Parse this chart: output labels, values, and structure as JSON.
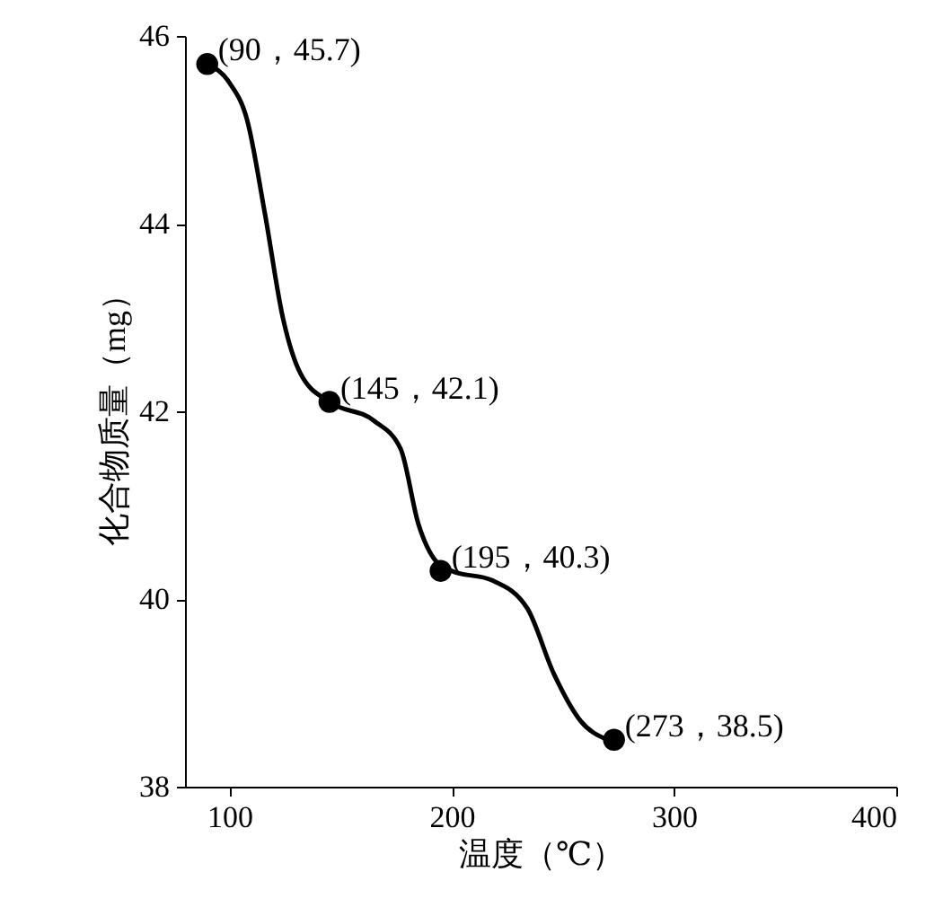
{
  "chart_data": {
    "type": "line",
    "xlabel": "温度（℃）",
    "ylabel": "化合物质量（mg）",
    "xlim": [
      80,
      400
    ],
    "ylim": [
      38,
      46
    ],
    "xticks": [
      100,
      200,
      300,
      400
    ],
    "yticks": [
      38,
      40,
      42,
      44,
      46
    ],
    "series": [
      {
        "type": "line",
        "marker": "none",
        "color": "#000000",
        "x": [
          90,
          100,
          108,
          116,
          124,
          132,
          145,
          165,
          177,
          185,
          193,
          200,
          218,
          234,
          246,
          258,
          270
        ],
        "values": [
          45.7,
          45.5,
          45.1,
          44.1,
          43.0,
          42.4,
          42.1,
          41.9,
          41.6,
          40.8,
          40.4,
          40.3,
          40.2,
          39.9,
          39.2,
          38.7,
          38.5
        ]
      },
      {
        "type": "scatter",
        "marker": "circle",
        "color": "#000000",
        "x": [
          90,
          145,
          195,
          273
        ],
        "values": [
          45.7,
          42.1,
          40.3,
          38.5
        ]
      }
    ],
    "annotations": [
      {
        "text": "(90，45.7)",
        "x": 90,
        "y": 45.7
      },
      {
        "text": "(145，42.1)",
        "x": 145,
        "y": 42.1
      },
      {
        "text": "(195，40.3)",
        "x": 195,
        "y": 40.3
      },
      {
        "text": "(273，38.5)",
        "x": 273,
        "y": 38.5
      }
    ]
  }
}
